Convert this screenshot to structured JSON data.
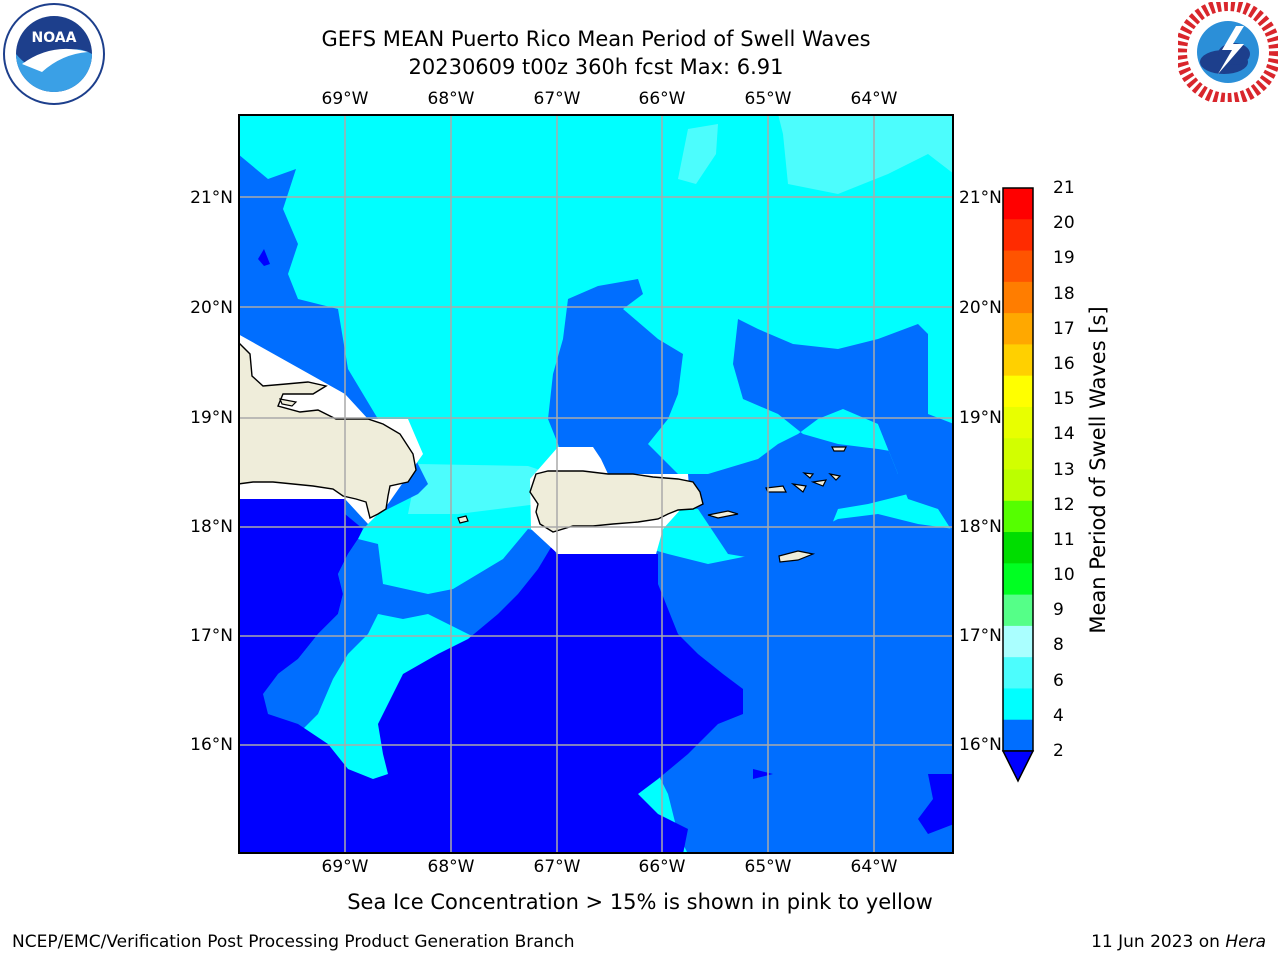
{
  "title": {
    "line1": "GEFS MEAN Puerto Rico Mean Period of Swell Waves",
    "line2": "20230609 t00z 360h fcst   Max: 6.91"
  },
  "logos": {
    "noaa": {
      "icon": "noaa-logo",
      "text": "NOAA"
    },
    "nws": {
      "icon": "nws-logo"
    }
  },
  "map": {
    "lon_labels": [
      "69°W",
      "68°W",
      "67°W",
      "66°W",
      "65°W",
      "64°W"
    ],
    "lat_labels": [
      "21°N",
      "20°N",
      "19°N",
      "18°N",
      "17°N",
      "16°N"
    ],
    "grid": true,
    "colors": {
      "land": "#efedda",
      "range_2_4": "#006eff",
      "below_2": "#0000ff",
      "range_4_6": "#00ffff",
      "range_6_8": "#4cfdfd"
    }
  },
  "colorbar": {
    "label": "Mean Period of Swell Waves [s]",
    "ticks": [
      "21",
      "20",
      "19",
      "18",
      "17",
      "16",
      "15",
      "14",
      "13",
      "12",
      "11",
      "10",
      "9",
      "8",
      "6",
      "4",
      "2"
    ],
    "extend": "min",
    "colors_top_to_bottom": [
      "#ff0000",
      "#ff2b00",
      "#ff5400",
      "#ff7d00",
      "#ffa800",
      "#ffd000",
      "#ffff00",
      "#e8ff00",
      "#d2ff00",
      "#bbff00",
      "#55ff00",
      "#00dd00",
      "#00ff22",
      "#55ff88",
      "#aaffff",
      "#4cfdfd",
      "#00ffff",
      "#006eff"
    ],
    "extend_color": "#0000ff"
  },
  "note": "Sea Ice Concentration > 15% is shown in pink to yellow",
  "footer": {
    "left": "NCEP/EMC/Verification Post Processing Product Generation Branch",
    "date": "11 Jun 2023 on ",
    "host": "Hera"
  }
}
